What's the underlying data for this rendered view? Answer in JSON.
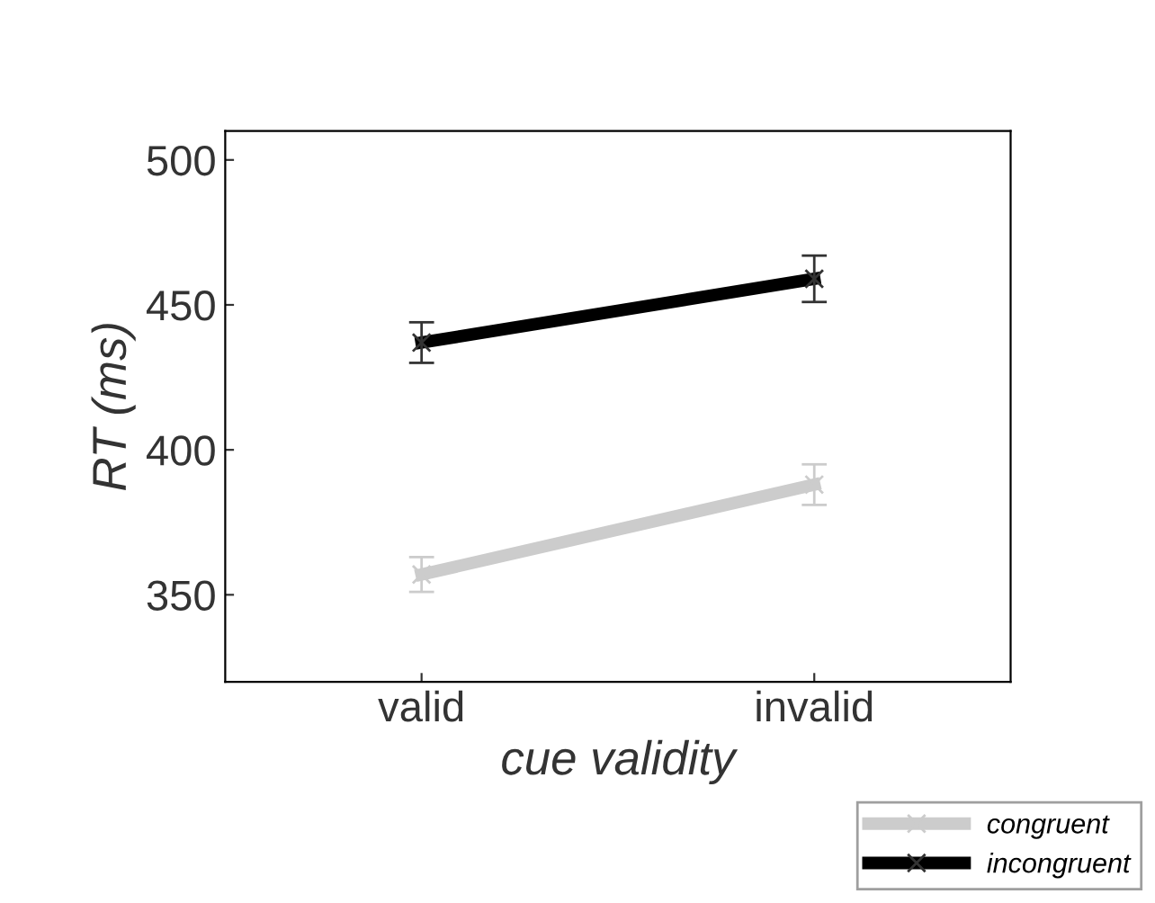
{
  "chart_data": {
    "type": "line",
    "xlabel": "cue validity",
    "ylabel": "RT (ms)",
    "categories": [
      "valid",
      "invalid"
    ],
    "series": [
      {
        "name": "congruent",
        "color": "#cccccc",
        "values": [
          357,
          388
        ],
        "errors": [
          6,
          7
        ]
      },
      {
        "name": "incongruent",
        "color": "#000000",
        "values": [
          437,
          459
        ],
        "errors": [
          7,
          8
        ]
      }
    ],
    "ylim": [
      320,
      510
    ],
    "yticks": [
      350,
      400,
      450,
      500
    ],
    "marker": "cross",
    "legend": "bottom right",
    "grid": false
  }
}
